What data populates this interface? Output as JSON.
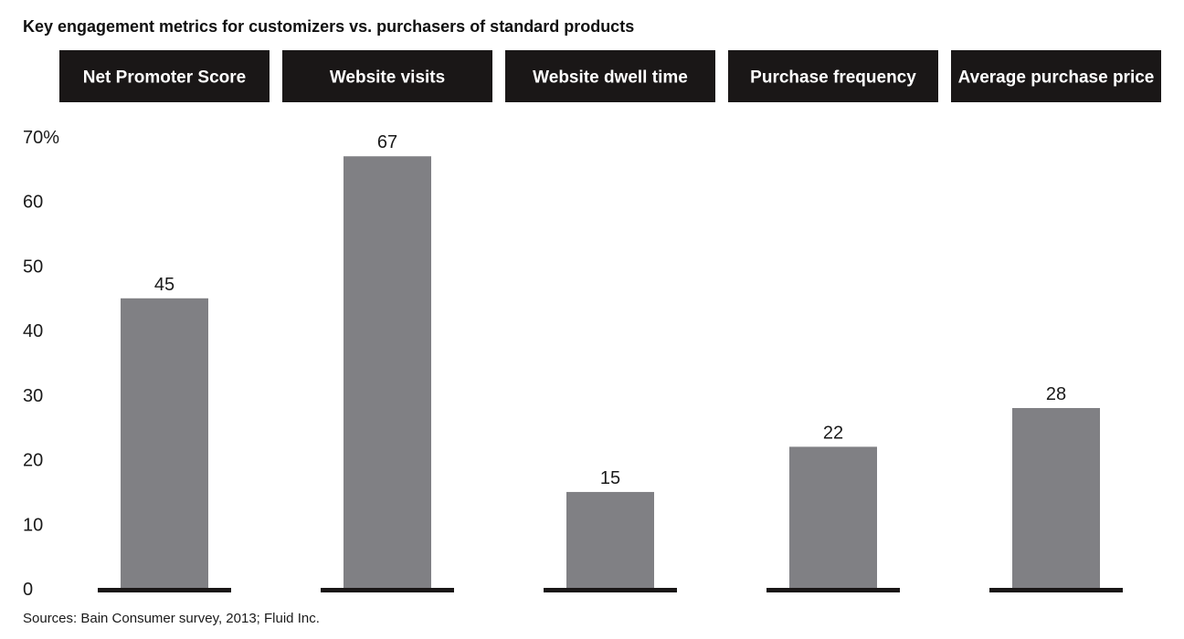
{
  "chart_data": {
    "type": "bar",
    "title": "Key engagement metrics for customizers vs. purchasers of standard products",
    "categories": [
      "Net Promoter Score",
      "Website visits",
      "Website dwell time",
      "Purchase frequency",
      "Average purchase price"
    ],
    "values": [
      45,
      67,
      15,
      22,
      28
    ],
    "value_labels": [
      "45",
      "67",
      "15",
      "22",
      "28"
    ],
    "ylim": [
      0,
      70
    ],
    "yticks": [
      0,
      10,
      20,
      30,
      40,
      50,
      60,
      70
    ],
    "ytick_labels": [
      "0",
      "10",
      "20",
      "30",
      "40",
      "50",
      "60",
      "70%"
    ],
    "xlabel": "",
    "ylabel": "",
    "grid": false,
    "legend": "none",
    "source": "Sources: Bain Consumer survey, 2013; Fluid Inc."
  },
  "colors": {
    "bar": "#808084",
    "header_bg": "#1a1717",
    "header_text": "#ffffff",
    "baseline": "#1a1717",
    "text": "#1a1a1a"
  }
}
